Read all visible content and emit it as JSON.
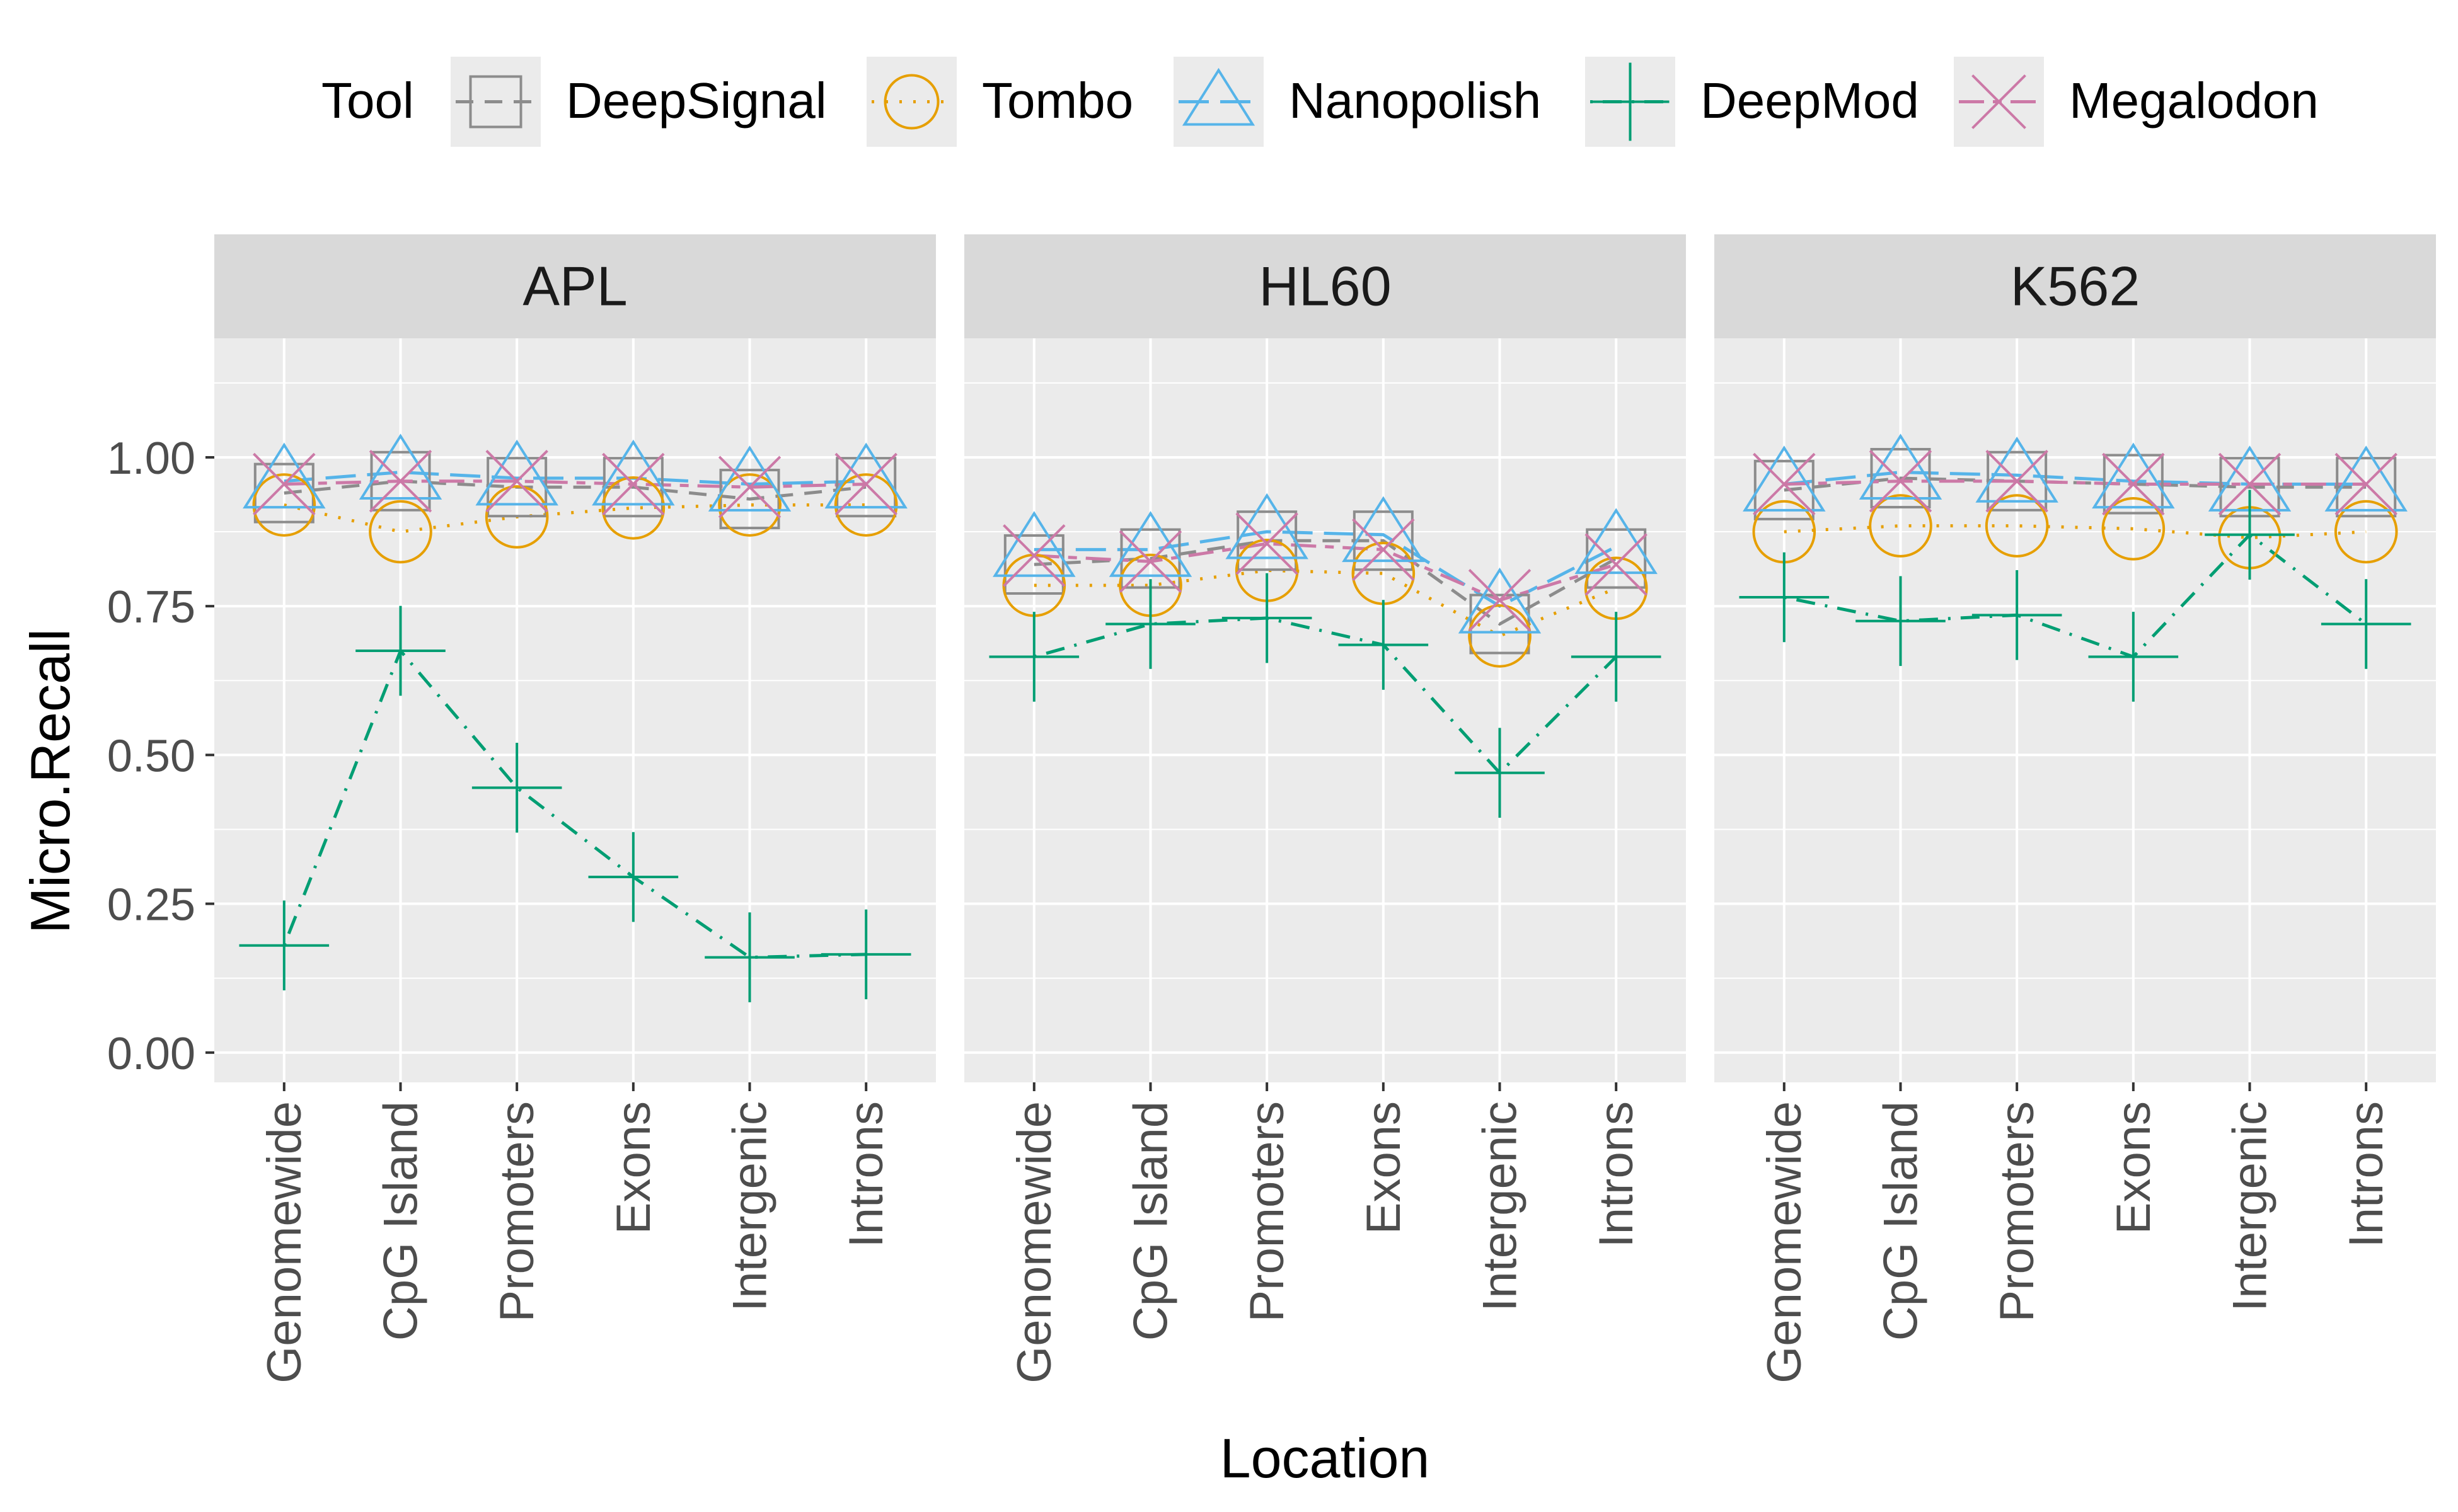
{
  "chart_data": {
    "type": "line",
    "ylabel": "Micro.Recall",
    "xlabel": "Location",
    "legend_title": "Tool",
    "legend_position": "top",
    "grid": true,
    "ylim": [
      -0.05,
      1.2
    ],
    "yticks": [
      0.0,
      0.25,
      0.5,
      0.75,
      1.0
    ],
    "ytick_labels": [
      "0.00",
      "0.25",
      "0.50",
      "0.75",
      "1.00"
    ],
    "categories": [
      "Genomewide",
      "CpG Island",
      "Promoters",
      "Exons",
      "Intergenic",
      "Introns"
    ],
    "tools": [
      {
        "name": "DeepSignal",
        "color": "#8C8C8C",
        "shape": "square",
        "line": "dashed"
      },
      {
        "name": "Tombo",
        "color": "#E69F00",
        "shape": "circle",
        "line": "dotted"
      },
      {
        "name": "Nanopolish",
        "color": "#56B4E9",
        "shape": "triangle",
        "line": "longdash"
      },
      {
        "name": "DeepMod",
        "color": "#009E73",
        "shape": "plus",
        "line": "dotdash"
      },
      {
        "name": "Megalodon",
        "color": "#CC79A7",
        "shape": "cross",
        "line": "twodash"
      }
    ],
    "panels": [
      {
        "title": "APL",
        "series": [
          {
            "name": "DeepSignal",
            "values": [
              0.94,
              0.96,
              0.95,
              0.95,
              0.93,
              0.95
            ]
          },
          {
            "name": "Tombo",
            "values": [
              0.92,
              0.875,
              0.9,
              0.915,
              0.92,
              0.92
            ]
          },
          {
            "name": "Nanopolish",
            "values": [
              0.96,
              0.975,
              0.965,
              0.965,
              0.955,
              0.96
            ]
          },
          {
            "name": "DeepMod",
            "values": [
              0.18,
              0.675,
              0.445,
              0.295,
              0.16,
              0.165
            ]
          },
          {
            "name": "Megalodon",
            "values": [
              0.955,
              0.96,
              0.96,
              0.955,
              0.95,
              0.955
            ]
          }
        ]
      },
      {
        "title": "HL60",
        "series": [
          {
            "name": "DeepSignal",
            "values": [
              0.82,
              0.83,
              0.86,
              0.86,
              0.72,
              0.83
            ]
          },
          {
            "name": "Tombo",
            "values": [
              0.785,
              0.785,
              0.81,
              0.805,
              0.7,
              0.78
            ]
          },
          {
            "name": "Nanopolish",
            "values": [
              0.845,
              0.845,
              0.875,
              0.87,
              0.75,
              0.85
            ]
          },
          {
            "name": "DeepMod",
            "values": [
              0.665,
              0.72,
              0.73,
              0.685,
              0.47,
              0.665
            ]
          },
          {
            "name": "Megalodon",
            "values": [
              0.835,
              0.825,
              0.855,
              0.845,
              0.76,
              0.82
            ]
          }
        ]
      },
      {
        "title": "K562",
        "series": [
          {
            "name": "DeepSignal",
            "values": [
              0.945,
              0.965,
              0.96,
              0.955,
              0.95,
              0.95
            ]
          },
          {
            "name": "Tombo",
            "values": [
              0.875,
              0.885,
              0.885,
              0.88,
              0.865,
              0.875
            ]
          },
          {
            "name": "Nanopolish",
            "values": [
              0.955,
              0.975,
              0.97,
              0.96,
              0.955,
              0.955
            ]
          },
          {
            "name": "DeepMod",
            "values": [
              0.765,
              0.725,
              0.735,
              0.665,
              0.87,
              0.72
            ]
          },
          {
            "name": "Megalodon",
            "values": [
              0.955,
              0.96,
              0.96,
              0.955,
              0.955,
              0.955
            ]
          }
        ]
      }
    ]
  }
}
